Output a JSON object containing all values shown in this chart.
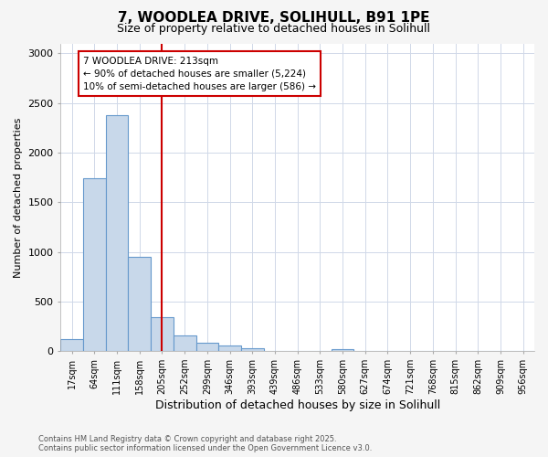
{
  "title_line1": "7, WOODLEA DRIVE, SOLIHULL, B91 1PE",
  "title_line2": "Size of property relative to detached houses in Solihull",
  "xlabel": "Distribution of detached houses by size in Solihull",
  "ylabel": "Number of detached properties",
  "categories": [
    "17sqm",
    "64sqm",
    "111sqm",
    "158sqm",
    "205sqm",
    "252sqm",
    "299sqm",
    "346sqm",
    "393sqm",
    "439sqm",
    "486sqm",
    "533sqm",
    "580sqm",
    "627sqm",
    "674sqm",
    "721sqm",
    "768sqm",
    "815sqm",
    "862sqm",
    "909sqm",
    "956sqm"
  ],
  "values": [
    120,
    1740,
    2380,
    950,
    340,
    155,
    90,
    55,
    30,
    0,
    0,
    0,
    25,
    0,
    0,
    0,
    0,
    0,
    0,
    0,
    0
  ],
  "bar_color": "#c8d8ea",
  "bar_edgecolor": "#6699cc",
  "vline_color": "#cc0000",
  "vline_x": 4,
  "annotation_text": "7 WOODLEA DRIVE: 213sqm\n← 90% of detached houses are smaller (5,224)\n10% of semi-detached houses are larger (586) →",
  "annotation_box_color": "#ffffff",
  "annotation_box_edgecolor": "#cc0000",
  "ylim": [
    0,
    3100
  ],
  "yticks": [
    0,
    500,
    1000,
    1500,
    2000,
    2500,
    3000
  ],
  "footnote": "Contains HM Land Registry data © Crown copyright and database right 2025.\nContains public sector information licensed under the Open Government Licence v3.0.",
  "bg_color": "#f5f5f5",
  "plot_bg_color": "#ffffff",
  "grid_color": "#d0d8e8",
  "title_fontsize": 11,
  "subtitle_fontsize": 9,
  "xlabel_fontsize": 9,
  "ylabel_fontsize": 8
}
